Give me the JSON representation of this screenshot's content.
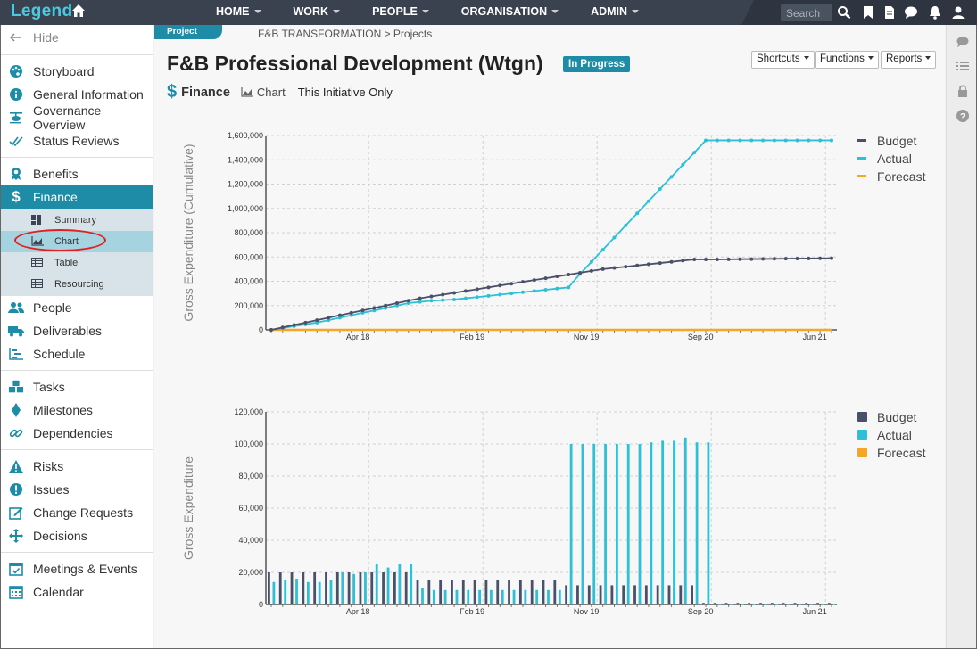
{
  "app": {
    "logo": "Legend",
    "nav": [
      "HOME",
      "WORK",
      "PEOPLE",
      "ORGANISATION",
      "ADMIN"
    ],
    "search_placeholder": "Search"
  },
  "sidebar": {
    "hide_label": "Hide",
    "groups": [
      [
        {
          "label": "Storyboard",
          "icon": "palette-icon"
        },
        {
          "label": "General Information",
          "icon": "info-icon"
        },
        {
          "label": "Governance Overview",
          "icon": "helicopter-icon"
        },
        {
          "label": "Status Reviews",
          "icon": "check-double-icon"
        }
      ],
      [
        {
          "label": "Benefits",
          "icon": "award-icon"
        },
        {
          "label": "Finance",
          "icon": "dollar-icon",
          "active": true
        }
      ],
      [
        {
          "label": "People",
          "icon": "users-icon"
        },
        {
          "label": "Deliverables",
          "icon": "truck-icon"
        },
        {
          "label": "Schedule",
          "icon": "gantt-icon"
        }
      ],
      [
        {
          "label": "Tasks",
          "icon": "cubes-icon"
        },
        {
          "label": "Milestones",
          "icon": "diamond-icon"
        },
        {
          "label": "Dependencies",
          "icon": "link-icon"
        }
      ],
      [
        {
          "label": "Risks",
          "icon": "warning-icon"
        },
        {
          "label": "Issues",
          "icon": "exclamation-icon"
        },
        {
          "label": "Change Requests",
          "icon": "edit-icon"
        },
        {
          "label": "Decisions",
          "icon": "arrows-icon"
        }
      ],
      [
        {
          "label": "Meetings & Events",
          "icon": "calendar-check-icon"
        },
        {
          "label": "Calendar",
          "icon": "calendar-icon"
        }
      ]
    ],
    "finance_sub": [
      {
        "label": "Summary",
        "icon": "dashboard-icon"
      },
      {
        "label": "Chart",
        "icon": "area-chart-icon",
        "active": true
      },
      {
        "label": "Table",
        "icon": "table-icon"
      },
      {
        "label": "Resourcing",
        "icon": "table-icon"
      }
    ]
  },
  "header": {
    "tag": "Project",
    "breadcrumb": "F&B TRANSFORMATION > Projects",
    "title": "F&B Professional Development (Wtgn)",
    "status": "In Progress",
    "buttons": [
      "Shortcuts",
      "Functions",
      "Reports"
    ],
    "section": "Finance",
    "section_symbol": "$",
    "view": "Chart",
    "scope": "This Initiative Only"
  },
  "colors": {
    "budget": "#4a5068",
    "actual": "#2ec0d6",
    "forecast": "#f5a623",
    "accent": "#1e8ca6",
    "topbar": "#3a4250"
  },
  "chart_data": [
    {
      "type": "line",
      "ylabel": "Gross Expenditure (Cumulative)",
      "ylim": [
        0,
        1600000
      ],
      "yticks": [
        "0",
        "200,000",
        "400,000",
        "600,000",
        "800,000",
        "1,000,000",
        "1,200,000",
        "1,400,000",
        "1,600,000"
      ],
      "xticks": [
        "Apr 18",
        "Feb 19",
        "Nov 19",
        "Sep 20",
        "Jun 21"
      ],
      "n_points": 50,
      "legend_position": "top-right",
      "grid": true,
      "series": [
        {
          "name": "Budget",
          "values": [
            0,
            20000,
            40000,
            60000,
            80000,
            100000,
            120000,
            140000,
            160000,
            180000,
            200000,
            220000,
            240000,
            260000,
            275000,
            290000,
            305000,
            320000,
            335000,
            350000,
            365000,
            380000,
            395000,
            410000,
            425000,
            440000,
            455000,
            470000,
            485000,
            500000,
            510000,
            520000,
            530000,
            540000,
            550000,
            560000,
            570000,
            580000,
            580000,
            580000,
            581000,
            582000,
            583000,
            584000,
            585000,
            586000,
            587000,
            588000,
            589000,
            590000
          ]
        },
        {
          "name": "Actual",
          "values": [
            0,
            15000,
            30000,
            45000,
            60000,
            80000,
            100000,
            120000,
            140000,
            160000,
            180000,
            200000,
            220000,
            230000,
            240000,
            245000,
            250000,
            260000,
            270000,
            280000,
            290000,
            300000,
            310000,
            320000,
            330000,
            340000,
            350000,
            460000,
            560000,
            660000,
            760000,
            860000,
            960000,
            1060000,
            1160000,
            1260000,
            1360000,
            1460000,
            1560000,
            1560000,
            1560000,
            1560000,
            1560000,
            1560000,
            1560000,
            1560000,
            1560000,
            1560000,
            1560000,
            1560000
          ]
        },
        {
          "name": "Forecast",
          "values": [
            0,
            0,
            0,
            0,
            0,
            0,
            0,
            0,
            0,
            0,
            0,
            0,
            0,
            0,
            0,
            0,
            0,
            0,
            0,
            0,
            0,
            0,
            0,
            0,
            0,
            0,
            0,
            0,
            0,
            0,
            0,
            0,
            0,
            0,
            0,
            0,
            0,
            0,
            0,
            0,
            0,
            0,
            0,
            0,
            0,
            0,
            0,
            0,
            0,
            0
          ]
        }
      ]
    },
    {
      "type": "bar",
      "ylabel": "Gross Expenditure",
      "ylim": [
        0,
        120000
      ],
      "yticks": [
        "0",
        "20,000",
        "40,000",
        "60,000",
        "80,000",
        "100,000",
        "120,000"
      ],
      "xticks": [
        "Apr 18",
        "Feb 19",
        "Nov 19",
        "Sep 20",
        "Jun 21"
      ],
      "n_points": 50,
      "legend_position": "top-right",
      "grid": true,
      "series": [
        {
          "name": "Budget",
          "values": [
            20000,
            20000,
            20000,
            20000,
            20000,
            20000,
            20000,
            20000,
            20000,
            20000,
            20000,
            20000,
            20000,
            15000,
            15000,
            15000,
            15000,
            15000,
            15000,
            15000,
            15000,
            15000,
            15000,
            15000,
            15000,
            15000,
            12000,
            12000,
            12000,
            12000,
            12000,
            12000,
            12000,
            12000,
            12000,
            12000,
            12000,
            12000,
            1000,
            1000,
            1000,
            1000,
            1000,
            1000,
            1000,
            1000,
            1000,
            1000,
            1000,
            1000
          ]
        },
        {
          "name": "Actual",
          "values": [
            14000,
            15000,
            16000,
            14000,
            14000,
            15000,
            20000,
            19000,
            20000,
            25000,
            23000,
            25000,
            25000,
            10000,
            9000,
            9000,
            9000,
            9000,
            9000,
            9000,
            9000,
            9000,
            9000,
            9000,
            9000,
            9000,
            100000,
            100000,
            100000,
            100000,
            100000,
            100000,
            100000,
            101000,
            102000,
            102000,
            104000,
            101000,
            101000,
            0,
            0,
            0,
            0,
            0,
            0,
            0,
            0,
            0,
            0,
            0
          ]
        },
        {
          "name": "Forecast",
          "values": [
            0,
            0,
            0,
            0,
            0,
            0,
            0,
            0,
            0,
            0,
            0,
            0,
            0,
            0,
            0,
            0,
            0,
            0,
            0,
            0,
            0,
            0,
            0,
            0,
            0,
            0,
            0,
            0,
            0,
            0,
            0,
            0,
            0,
            0,
            0,
            0,
            0,
            0,
            0,
            0,
            0,
            0,
            0,
            0,
            0,
            0,
            0,
            0,
            0,
            0
          ]
        }
      ]
    }
  ]
}
